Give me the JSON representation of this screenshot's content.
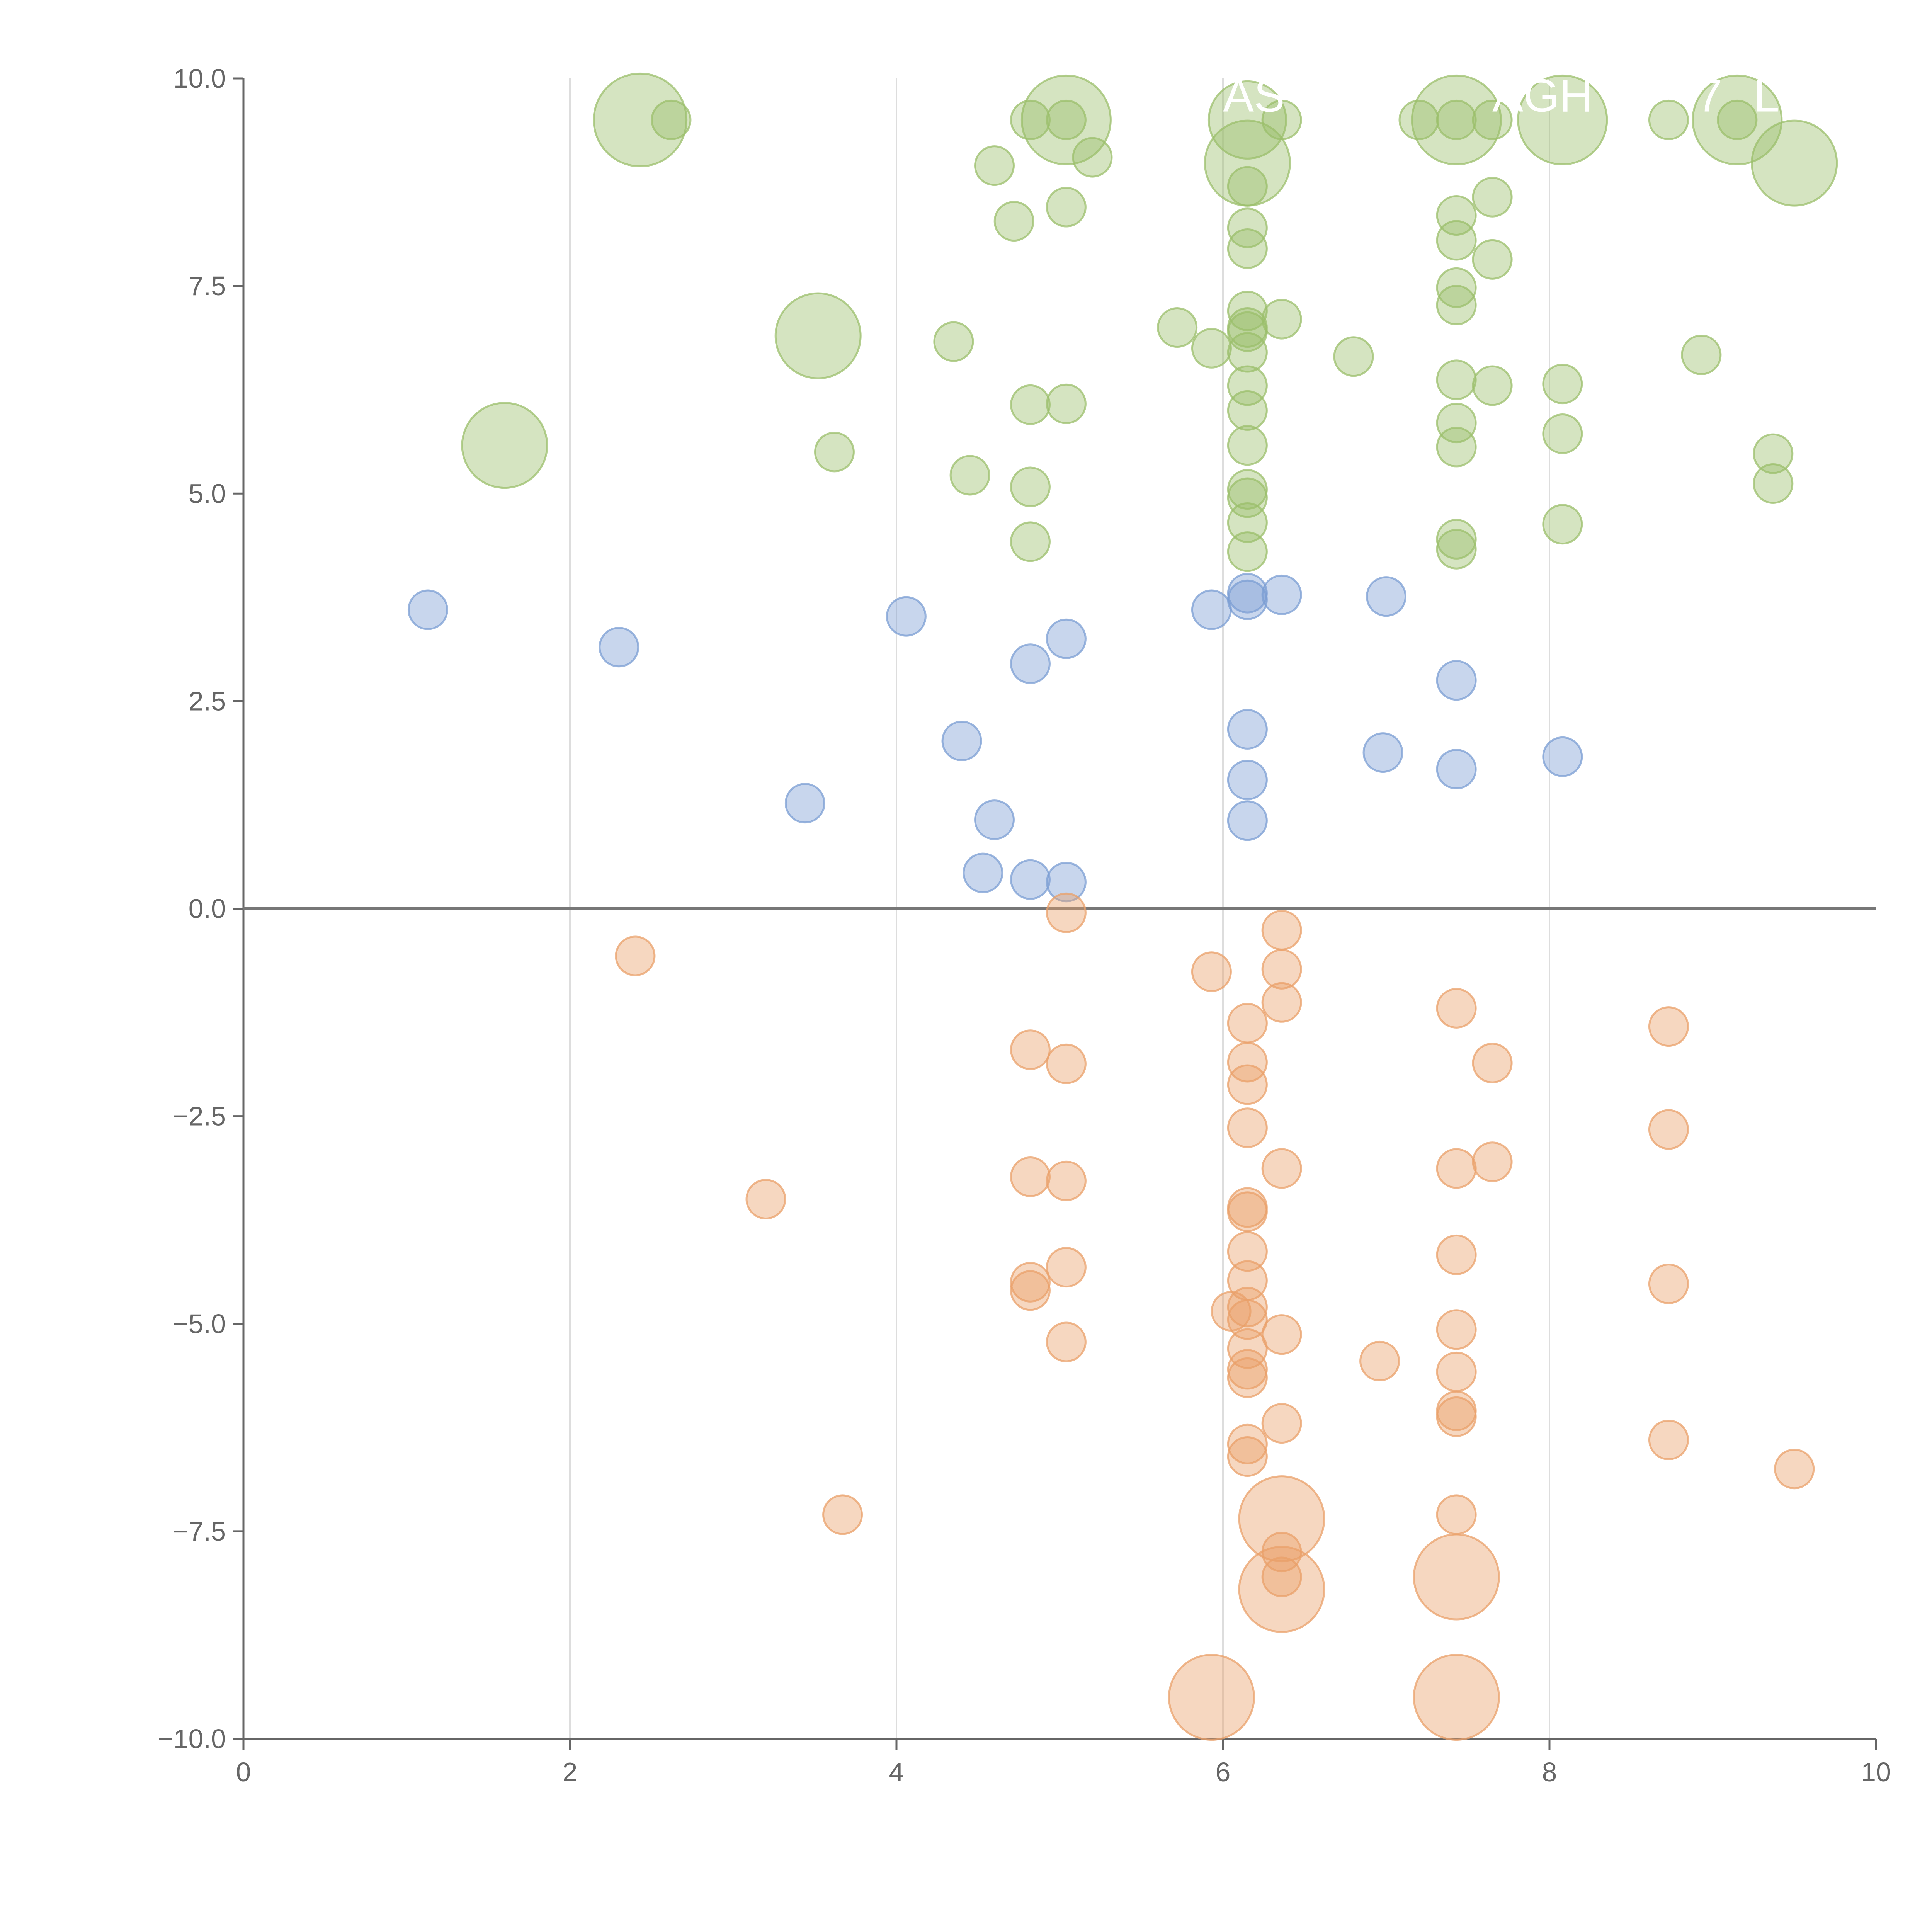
{
  "chart_data": {
    "type": "scatter",
    "title": "",
    "xlabel": "",
    "ylabel": "",
    "xlim": [
      0,
      10
    ],
    "ylim": [
      -10,
      10
    ],
    "x_ticks": [
      0,
      2,
      4,
      6,
      8,
      10
    ],
    "y_ticks": [
      -10,
      -7.5,
      -5,
      -2.5,
      0,
      2.5,
      5,
      7.5,
      10
    ],
    "x_tick_labels": [
      "0",
      "2",
      "4",
      "6",
      "8",
      "10"
    ],
    "y_tick_labels": [
      "−10.0",
      "−7.5",
      "−5.0",
      "−2.5",
      "0.0",
      "2.5",
      "5.0",
      "7.5",
      "10.0"
    ],
    "vertical_grid": [
      2,
      4,
      6,
      8
    ],
    "zero_line": 0,
    "colors": {
      "green": "#9bbf6b",
      "blue": "#7b9ed3",
      "orange": "#e9a06a",
      "axis": "#666666",
      "grid": "#dddddd",
      "zero_line": "#777777"
    },
    "series": [
      {
        "name": "green",
        "color": "#9bbf6b",
        "points": [
          [
            2.43,
            9.5,
            2.4
          ],
          [
            2.62,
            9.5,
            1
          ],
          [
            4.82,
            9.5,
            1
          ],
          [
            5.04,
            9.5,
            2.3
          ],
          [
            5.04,
            9.5,
            1
          ],
          [
            6.15,
            9.5,
            2
          ],
          [
            6.36,
            9.5,
            1
          ],
          [
            7.2,
            9.5,
            1
          ],
          [
            7.43,
            9.5,
            2.3
          ],
          [
            7.43,
            9.5,
            1
          ],
          [
            7.65,
            9.5,
            1
          ],
          [
            8.08,
            9.5,
            2.3
          ],
          [
            8.73,
            9.5,
            1
          ],
          [
            9.15,
            9.5,
            2.3
          ],
          [
            9.15,
            9.5,
            1
          ],
          [
            5.2,
            9.05,
            1
          ],
          [
            4.6,
            8.95,
            1
          ],
          [
            6.15,
            8.98,
            2.2
          ],
          [
            9.5,
            8.98,
            2.2
          ],
          [
            6.15,
            8.7,
            1
          ],
          [
            7.65,
            8.57,
            1
          ],
          [
            5.04,
            8.45,
            1
          ],
          [
            7.43,
            8.35,
            1
          ],
          [
            4.72,
            8.28,
            1
          ],
          [
            6.15,
            8.2,
            1
          ],
          [
            7.43,
            8.05,
            1
          ],
          [
            6.15,
            7.95,
            1
          ],
          [
            7.65,
            7.82,
            1
          ],
          [
            7.43,
            7.48,
            1
          ],
          [
            6.15,
            7.2,
            1
          ],
          [
            7.43,
            7.27,
            1
          ],
          [
            6.36,
            7.1,
            1
          ],
          [
            6.15,
            7.0,
            1
          ],
          [
            5.72,
            7.0,
            1
          ],
          [
            3.52,
            6.9,
            2.2
          ],
          [
            6.15,
            6.95,
            1
          ],
          [
            4.35,
            6.83,
            1
          ],
          [
            5.93,
            6.75,
            1
          ],
          [
            6.15,
            6.7,
            1
          ],
          [
            6.8,
            6.65,
            1
          ],
          [
            8.93,
            6.67,
            1
          ],
          [
            7.43,
            6.37,
            1
          ],
          [
            6.15,
            6.3,
            1
          ],
          [
            7.65,
            6.3,
            1
          ],
          [
            8.08,
            6.32,
            1
          ],
          [
            4.82,
            6.07,
            1
          ],
          [
            5.04,
            6.08,
            1
          ],
          [
            6.15,
            6.0,
            1
          ],
          [
            7.43,
            5.85,
            1
          ],
          [
            8.08,
            5.72,
            1
          ],
          [
            1.6,
            5.58,
            2.2
          ],
          [
            6.15,
            5.58,
            1
          ],
          [
            7.43,
            5.56,
            1
          ],
          [
            3.62,
            5.5,
            1
          ],
          [
            9.37,
            5.48,
            1
          ],
          [
            4.45,
            5.22,
            1
          ],
          [
            9.37,
            5.12,
            1
          ],
          [
            4.82,
            5.08,
            1
          ],
          [
            6.15,
            5.05,
            1
          ],
          [
            6.15,
            4.95,
            1
          ],
          [
            6.15,
            4.65,
            1
          ],
          [
            8.08,
            4.63,
            1
          ],
          [
            7.43,
            4.45,
            1
          ],
          [
            4.82,
            4.42,
            1
          ],
          [
            7.43,
            4.33,
            1
          ],
          [
            6.15,
            4.3,
            1
          ]
        ]
      },
      {
        "name": "blue",
        "color": "#7b9ed3",
        "points": [
          [
            1.13,
            3.6,
            1
          ],
          [
            2.3,
            3.15,
            1
          ],
          [
            4.06,
            3.52,
            1
          ],
          [
            5.93,
            3.6,
            1
          ],
          [
            6.15,
            3.8,
            1
          ],
          [
            6.15,
            3.72,
            1
          ],
          [
            6.36,
            3.78,
            1
          ],
          [
            7.0,
            3.76,
            1
          ],
          [
            4.82,
            2.95,
            1
          ],
          [
            5.04,
            3.25,
            1
          ],
          [
            7.43,
            2.75,
            1
          ],
          [
            6.15,
            2.16,
            1
          ],
          [
            4.4,
            2.02,
            1
          ],
          [
            6.98,
            1.88,
            1
          ],
          [
            8.08,
            1.83,
            1
          ],
          [
            7.43,
            1.68,
            1
          ],
          [
            6.15,
            1.55,
            1
          ],
          [
            3.44,
            1.27,
            1
          ],
          [
            4.6,
            1.07,
            1
          ],
          [
            6.15,
            1.06,
            1
          ],
          [
            4.53,
            0.43,
            1
          ],
          [
            4.82,
            0.35,
            1
          ],
          [
            5.04,
            0.32,
            1
          ]
        ]
      },
      {
        "name": "orange",
        "color": "#e9a06a",
        "points": [
          [
            5.04,
            -0.05,
            1
          ],
          [
            6.36,
            -0.26,
            1
          ],
          [
            2.4,
            -0.57,
            1
          ],
          [
            5.93,
            -0.76,
            1
          ],
          [
            6.36,
            -0.73,
            1
          ],
          [
            6.36,
            -1.13,
            1
          ],
          [
            7.43,
            -1.2,
            1
          ],
          [
            6.15,
            -1.38,
            1
          ],
          [
            8.73,
            -1.42,
            1
          ],
          [
            4.82,
            -1.7,
            1
          ],
          [
            5.04,
            -1.87,
            1
          ],
          [
            6.15,
            -1.85,
            1
          ],
          [
            7.65,
            -1.86,
            1
          ],
          [
            6.15,
            -2.12,
            1
          ],
          [
            6.15,
            -2.64,
            1
          ],
          [
            8.73,
            -2.66,
            1
          ],
          [
            7.65,
            -3.05,
            1
          ],
          [
            7.43,
            -3.13,
            1
          ],
          [
            6.36,
            -3.13,
            1
          ],
          [
            4.82,
            -3.23,
            1
          ],
          [
            5.04,
            -3.28,
            1
          ],
          [
            3.2,
            -3.5,
            1
          ],
          [
            6.15,
            -3.6,
            1
          ],
          [
            6.15,
            -3.65,
            1
          ],
          [
            6.15,
            -4.13,
            1
          ],
          [
            7.43,
            -4.17,
            1
          ],
          [
            5.04,
            -4.32,
            1
          ],
          [
            4.82,
            -4.5,
            1
          ],
          [
            4.82,
            -4.6,
            1
          ],
          [
            6.15,
            -4.48,
            1
          ],
          [
            8.73,
            -4.52,
            1
          ],
          [
            6.15,
            -4.8,
            1
          ],
          [
            6.05,
            -4.85,
            1
          ],
          [
            6.15,
            -4.95,
            1
          ],
          [
            7.43,
            -5.07,
            1
          ],
          [
            6.36,
            -5.13,
            1
          ],
          [
            5.04,
            -5.22,
            1
          ],
          [
            6.15,
            -5.3,
            1
          ],
          [
            6.96,
            -5.45,
            1
          ],
          [
            6.15,
            -5.55,
            1
          ],
          [
            7.43,
            -5.58,
            1
          ],
          [
            6.15,
            -5.65,
            1
          ],
          [
            7.43,
            -6.05,
            1
          ],
          [
            7.43,
            -6.12,
            1
          ],
          [
            6.36,
            -6.2,
            1
          ],
          [
            8.73,
            -6.4,
            1
          ],
          [
            6.15,
            -6.45,
            1
          ],
          [
            6.15,
            -6.6,
            1
          ],
          [
            9.5,
            -6.75,
            1
          ],
          [
            3.67,
            -7.3,
            1
          ],
          [
            6.36,
            -7.35,
            2.2
          ],
          [
            7.43,
            -7.3,
            1
          ],
          [
            6.36,
            -7.75,
            1
          ],
          [
            6.36,
            -8.05,
            1
          ],
          [
            6.36,
            -8.2,
            2.2
          ],
          [
            7.43,
            -8.05,
            2.2
          ],
          [
            5.93,
            -9.5,
            2.2
          ],
          [
            7.43,
            -9.5,
            2.2
          ]
        ]
      }
    ],
    "annotations": [
      {
        "text": "AS",
        "x": 6.0,
        "y": 9.75,
        "color": "#ffffff"
      },
      {
        "text": "AGH",
        "x": 7.65,
        "y": 9.75,
        "color": "#ffffff"
      },
      {
        "text": "7",
        "x": 8.9,
        "y": 9.75,
        "color": "#ffffff"
      },
      {
        "text": "LIC",
        "x": 9.25,
        "y": 9.75,
        "color": "#ffffff"
      }
    ]
  }
}
